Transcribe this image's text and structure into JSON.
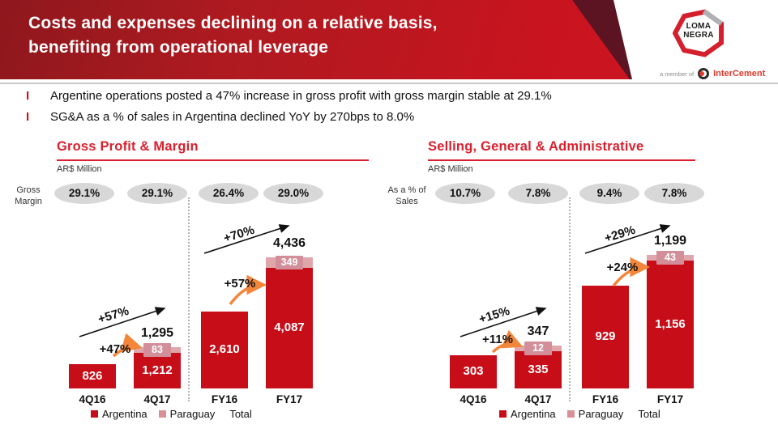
{
  "header": {
    "title_line1": "Costs and expenses declining on a relative basis,",
    "title_line2": "benefiting from operational leverage",
    "logo_line1": "LOMA",
    "logo_line2": "NEGRA",
    "member_text": "a member of",
    "member_brand": "InterCement"
  },
  "bullets": [
    {
      "marker": "I",
      "text": "Argentine operations posted a 47% increase in gross profit with gross margin stable at 29.1%"
    },
    {
      "marker": "I",
      "text": "SG&A  as a % of sales in Argentina declined YoY by 270bps to 8.0%"
    }
  ],
  "colors": {
    "banner_left": "#8e181d",
    "banner_right": "#cd1520",
    "banner_fold": "#5c1322",
    "accent_red": "#d9202e",
    "argentina_bar": "#c60d18",
    "paraguay_band": "#dfa6ab",
    "paraguay_chip": "#d28f9a",
    "legend_paraguay": "#d98f96",
    "oval_gray": "#d8d8d8",
    "arrow_orange": "#f2863b",
    "intercement_red": "#e23a2c"
  },
  "chart_data": [
    {
      "type": "bar",
      "title": "Gross Profit & Margin",
      "units": "AR$ Million",
      "row_label_line1": "Gross",
      "row_label_line2": "Margin",
      "ratio_labels": [
        "29.1%",
        "29.1%",
        "26.4%",
        "29.0%"
      ],
      "categories": [
        "4Q16",
        "4Q17",
        "FY16",
        "FY17"
      ],
      "series": [
        {
          "name": "Argentina",
          "values": [
            826,
            1212,
            2610,
            4087
          ]
        },
        {
          "name": "Paraguay",
          "values": [
            0,
            83,
            0,
            349
          ]
        }
      ],
      "totals": [
        826,
        1295,
        2610,
        4436
      ],
      "bar_value_labels": [
        "826",
        "1,212",
        "2,610",
        "4,087"
      ],
      "paraguay_value_labels": [
        "",
        "83",
        "",
        "349"
      ],
      "total_value_labels": [
        "",
        "1,295",
        "",
        "4,436"
      ],
      "annotations": {
        "q_black": "+57%",
        "q_orange": "+47%",
        "fy_black": "+70%",
        "fy_orange": "+57%"
      },
      "legend": [
        "Argentina",
        "Paraguay",
        "Total"
      ],
      "ylim": [
        0,
        4800
      ],
      "grid": false
    },
    {
      "type": "bar",
      "title": "Selling, General & Administrative",
      "units": "AR$ Million",
      "row_label_line1": "As a % of",
      "row_label_line2": "Sales",
      "ratio_labels": [
        "10.7%",
        "7.8%",
        "9.4%",
        "7.8%"
      ],
      "categories": [
        "4Q16",
        "4Q17",
        "FY16",
        "FY17"
      ],
      "series": [
        {
          "name": "Argentina",
          "values": [
            303,
            335,
            929,
            1156
          ]
        },
        {
          "name": "Paraguay",
          "values": [
            0,
            12,
            0,
            43
          ]
        }
      ],
      "totals": [
        303,
        347,
        929,
        1199
      ],
      "bar_value_labels": [
        "303",
        "335",
        "929",
        "1,156"
      ],
      "paraguay_value_labels": [
        "",
        "12",
        "",
        "43"
      ],
      "total_value_labels": [
        "",
        "347",
        "",
        "1,199"
      ],
      "annotations": {
        "q_black": "+15%",
        "q_orange": "+11%",
        "fy_black": "+29%",
        "fy_orange": "+24%"
      },
      "legend": [
        "Argentina",
        "Paraguay",
        "Total"
      ],
      "ylim": [
        0,
        1300
      ],
      "grid": false
    }
  ]
}
